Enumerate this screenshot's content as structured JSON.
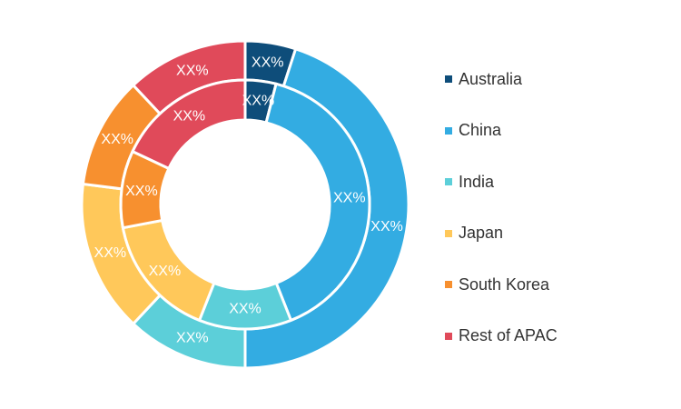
{
  "chart_data": {
    "type": "pie",
    "subtype": "nested-donut",
    "categories": [
      "Australia",
      "China",
      "India",
      "Japan",
      "South Korea",
      "Rest of APAC"
    ],
    "colors": [
      "#0e4d7a",
      "#33ace2",
      "#5ccfd9",
      "#ffc85a",
      "#f7902f",
      "#e04a5a"
    ],
    "series": [
      {
        "ring": "outer",
        "values": [
          5,
          45,
          12,
          15,
          11,
          12
        ],
        "labels": [
          "XX%",
          "XX%",
          "XX%",
          "XX%",
          "XX%",
          "XX%"
        ]
      },
      {
        "ring": "inner",
        "values": [
          4,
          40,
          12,
          16,
          10,
          18
        ],
        "labels": [
          "XX%",
          "XX%",
          "XX%",
          "XX%",
          "XX%",
          "XX%"
        ]
      }
    ],
    "legend": {
      "position": "right",
      "items": [
        "Australia",
        "China",
        "India",
        "Japan",
        "South Korea",
        "Rest of APAC"
      ]
    }
  }
}
